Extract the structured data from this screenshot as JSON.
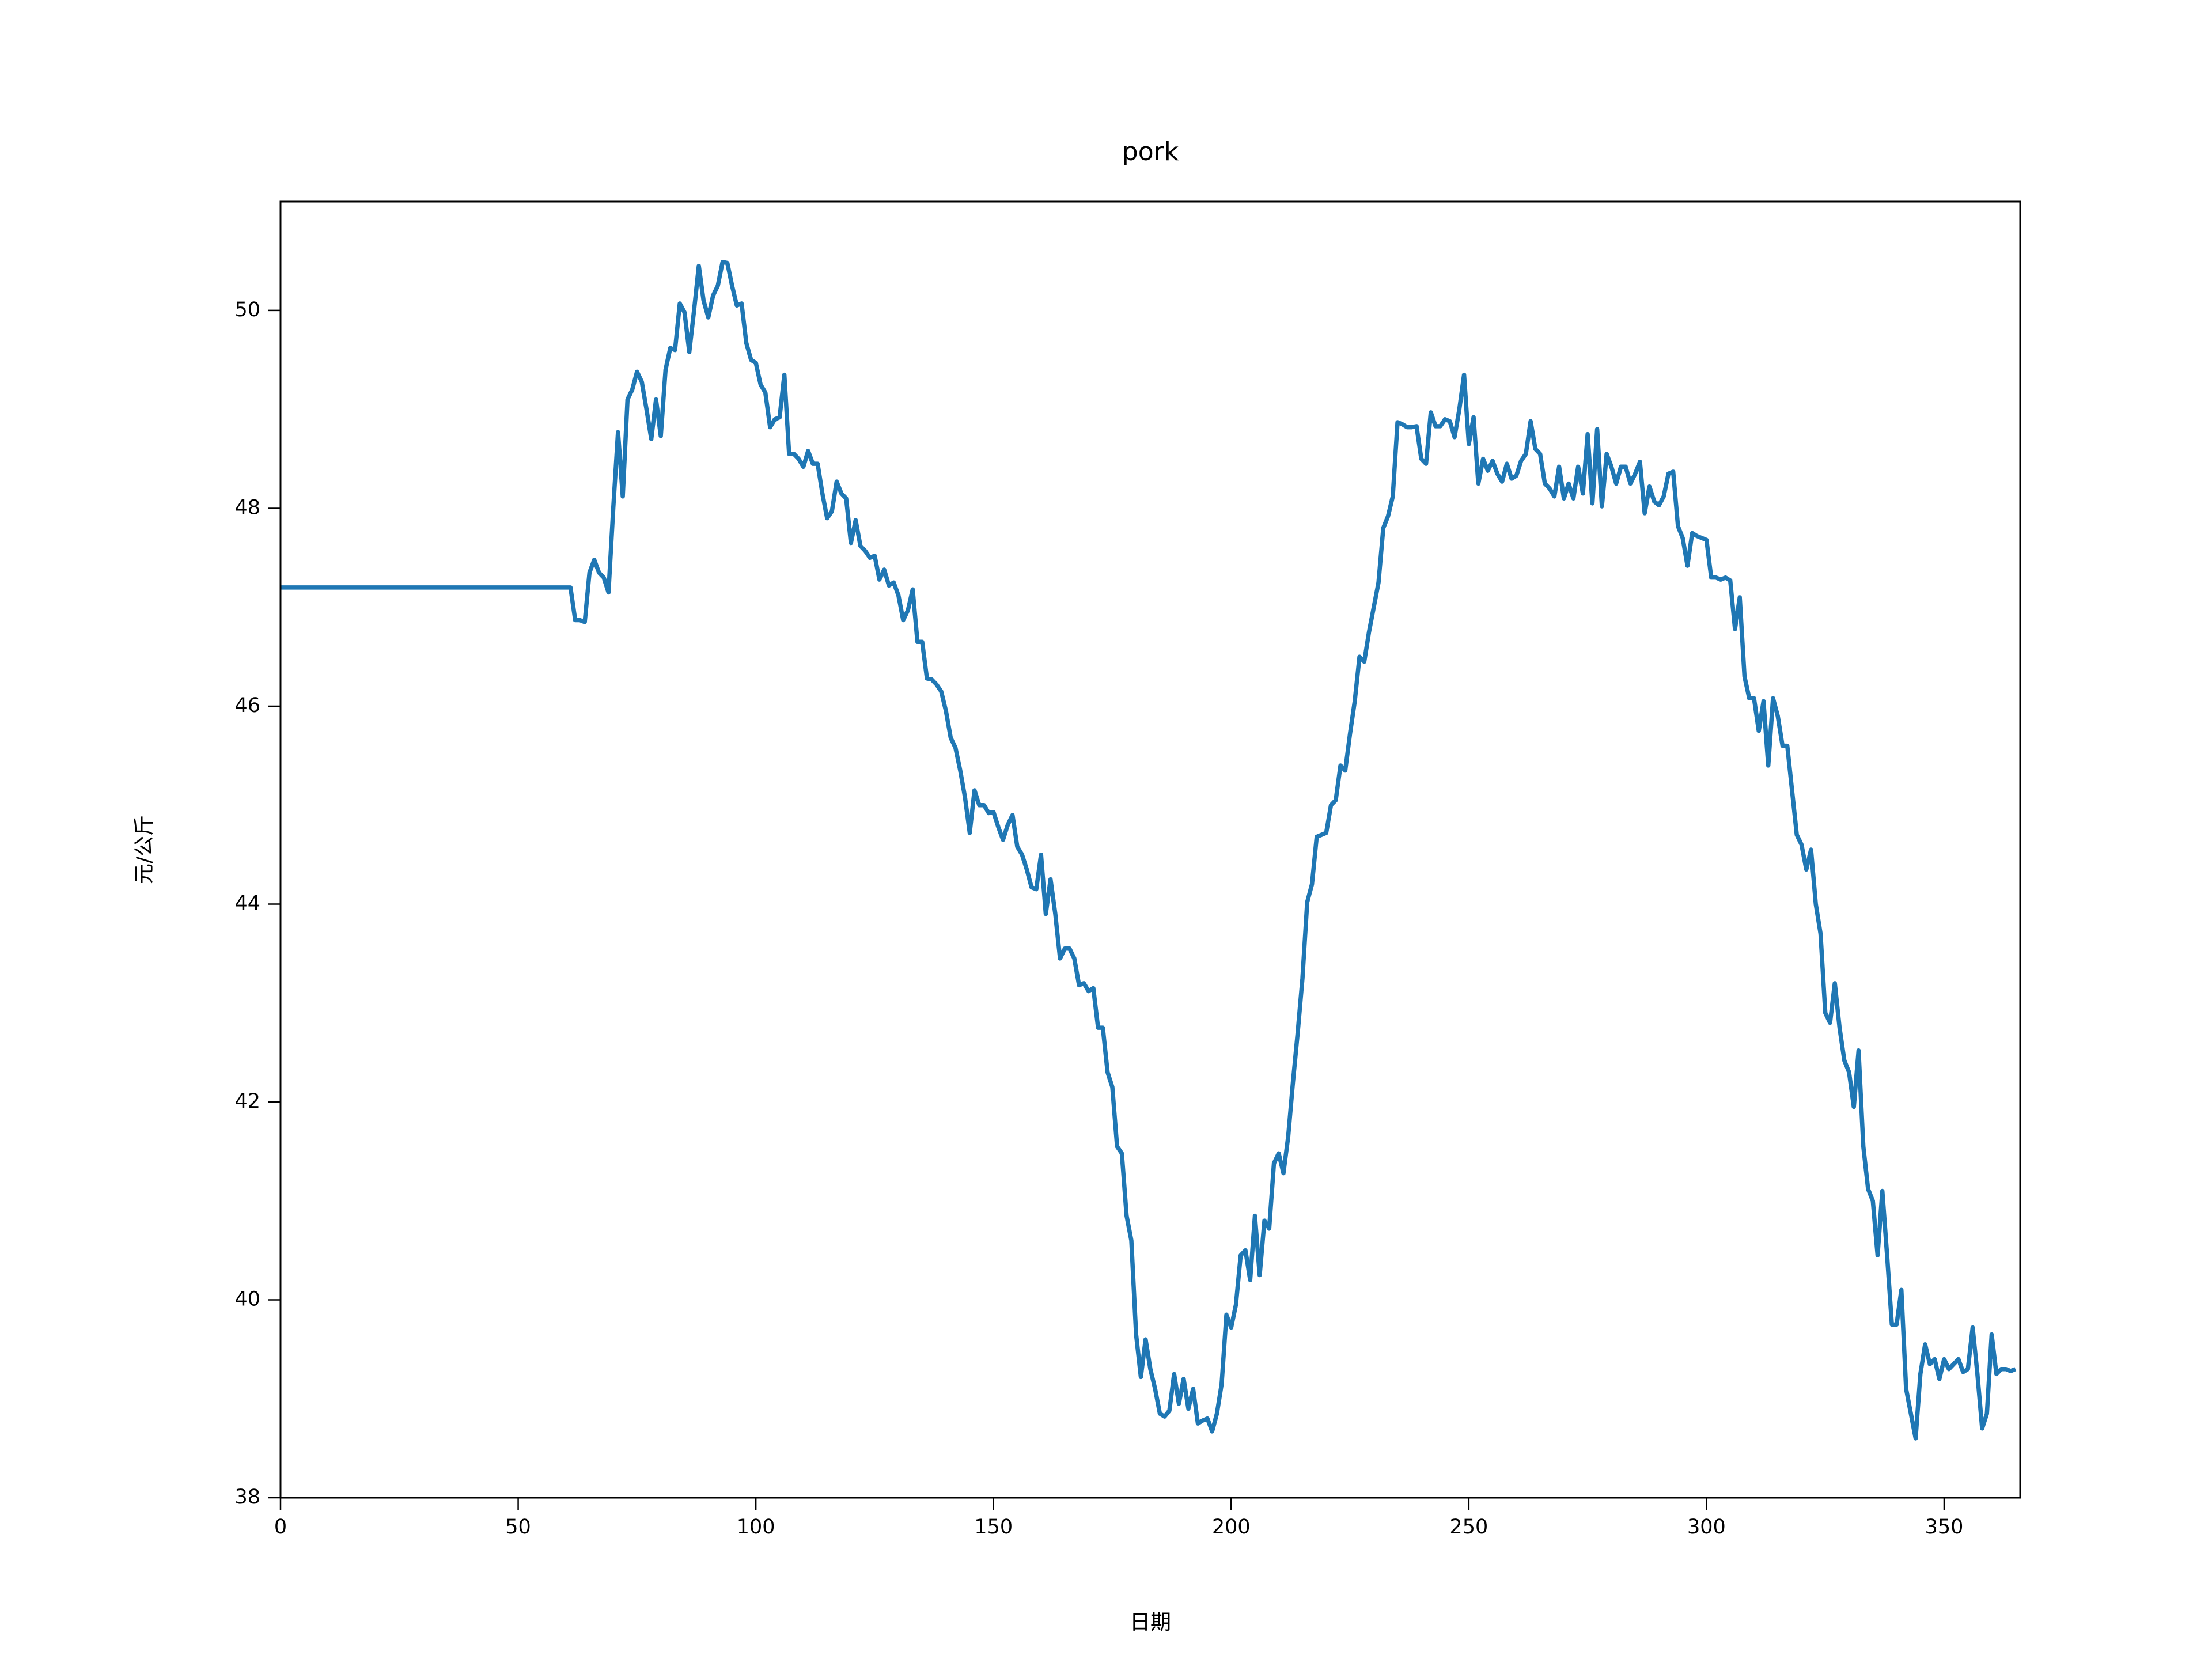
{
  "chart_data": {
    "type": "line",
    "title": "pork",
    "x_label": "日期",
    "y_label": "元/公斤",
    "xlim": [
      0,
      366
    ],
    "xticks": [
      0,
      50,
      100,
      150,
      200,
      250,
      300,
      350
    ],
    "ylim": [
      38,
      51.1
    ],
    "yticks": [
      38,
      40,
      42,
      44,
      46,
      48,
      50
    ],
    "color": "#1f77b4",
    "x": [
      0,
      61,
      62,
      63,
      64,
      65,
      66,
      67,
      68,
      69,
      70,
      71,
      72,
      73,
      74,
      75,
      76,
      77,
      78,
      79,
      80,
      81,
      82,
      83,
      84,
      85,
      86,
      87,
      88,
      89,
      90,
      91,
      92,
      93,
      94,
      95,
      96,
      97,
      98,
      99,
      100,
      101,
      102,
      103,
      104,
      105,
      106,
      107,
      108,
      109,
      110,
      111,
      112,
      113,
      114,
      115,
      116,
      117,
      118,
      119,
      120,
      121,
      122,
      123,
      124,
      125,
      126,
      127,
      128,
      129,
      130,
      131,
      132,
      133,
      134,
      135,
      136,
      137,
      138,
      139,
      140,
      141,
      142,
      143,
      144,
      145,
      146,
      147,
      148,
      149,
      150,
      151,
      152,
      153,
      154,
      155,
      156,
      157,
      158,
      159,
      160,
      161,
      162,
      163,
      164,
      165,
      166,
      167,
      168,
      169,
      170,
      171,
      172,
      173,
      174,
      175,
      176,
      177,
      178,
      179,
      180,
      181,
      182,
      183,
      184,
      185,
      186,
      187,
      188,
      189,
      190,
      191,
      192,
      193,
      194,
      195,
      196,
      197,
      198,
      199,
      200,
      201,
      202,
      203,
      204,
      205,
      206,
      207,
      208,
      209,
      210,
      211,
      212,
      213,
      214,
      215,
      216,
      217,
      218,
      219,
      220,
      221,
      222,
      223,
      224,
      225,
      226,
      227,
      228,
      229,
      230,
      231,
      232,
      233,
      234,
      235,
      236,
      237,
      238,
      239,
      240,
      241,
      242,
      243,
      244,
      245,
      246,
      247,
      248,
      249,
      250,
      251,
      252,
      253,
      254,
      255,
      256,
      257,
      258,
      259,
      260,
      261,
      262,
      263,
      264,
      265,
      266,
      267,
      268,
      269,
      270,
      271,
      272,
      273,
      274,
      275,
      276,
      277,
      278,
      279,
      280,
      281,
      282,
      283,
      284,
      285,
      286,
      287,
      288,
      289,
      290,
      291,
      292,
      293,
      294,
      295,
      296,
      297,
      298,
      299,
      300,
      301,
      302,
      303,
      304,
      305,
      306,
      307,
      308,
      309,
      310,
      311,
      312,
      313,
      314,
      315,
      316,
      317,
      318,
      319,
      320,
      321,
      322,
      323,
      324,
      325,
      326,
      327,
      328,
      329,
      330,
      331,
      332,
      333,
      334,
      335,
      336,
      337,
      338,
      339,
      340,
      341,
      342,
      343,
      344,
      345,
      346,
      347,
      348,
      349,
      350,
      351,
      352,
      353,
      354,
      355,
      356,
      357,
      358,
      359,
      360,
      361,
      362,
      363,
      364,
      365
    ],
    "values": [
      47.2,
      47.2,
      46.87,
      46.87,
      46.85,
      47.35,
      47.48,
      47.35,
      47.3,
      47.15,
      48.0,
      48.77,
      48.12,
      49.1,
      49.2,
      49.38,
      49.28,
      49.0,
      48.7,
      49.1,
      48.73,
      49.4,
      49.62,
      49.6,
      50.07,
      49.98,
      49.58,
      50.0,
      50.45,
      50.1,
      49.93,
      50.15,
      50.25,
      50.49,
      50.48,
      50.25,
      50.05,
      50.07,
      49.67,
      49.5,
      49.47,
      49.25,
      49.17,
      48.82,
      48.9,
      48.92,
      49.35,
      48.55,
      48.55,
      48.5,
      48.42,
      48.58,
      48.45,
      48.45,
      48.15,
      47.9,
      47.97,
      48.27,
      48.15,
      48.1,
      47.65,
      47.88,
      47.62,
      47.57,
      47.5,
      47.52,
      47.28,
      47.38,
      47.22,
      47.25,
      47.12,
      46.87,
      46.97,
      47.18,
      46.65,
      46.65,
      46.28,
      46.27,
      46.22,
      46.15,
      45.95,
      45.68,
      45.58,
      45.35,
      45.08,
      44.72,
      45.15,
      45.0,
      45.0,
      44.92,
      44.93,
      44.78,
      44.65,
      44.8,
      44.9,
      44.58,
      44.5,
      44.35,
      44.17,
      44.15,
      44.5,
      43.9,
      44.25,
      43.9,
      43.45,
      43.55,
      43.55,
      43.45,
      43.18,
      43.2,
      43.12,
      43.15,
      42.75,
      42.75,
      42.3,
      42.15,
      41.55,
      41.48,
      40.85,
      40.6,
      39.65,
      39.22,
      39.6,
      39.3,
      39.1,
      38.85,
      38.82,
      38.88,
      39.25,
      38.95,
      39.2,
      38.9,
      39.1,
      38.75,
      38.78,
      38.8,
      38.67,
      38.85,
      39.15,
      39.85,
      39.72,
      39.95,
      40.45,
      40.5,
      40.2,
      40.85,
      40.25,
      40.8,
      40.72,
      41.38,
      41.48,
      41.28,
      41.65,
      42.2,
      42.7,
      43.25,
      44.02,
      44.2,
      44.68,
      44.7,
      44.72,
      45.0,
      45.05,
      45.4,
      45.35,
      45.72,
      46.05,
      46.5,
      46.45,
      46.75,
      47.0,
      47.25,
      47.8,
      47.92,
      48.12,
      48.87,
      48.85,
      48.82,
      48.82,
      48.83,
      48.5,
      48.45,
      48.97,
      48.83,
      48.83,
      48.9,
      48.88,
      48.72,
      49.0,
      49.35,
      48.65,
      48.92,
      48.25,
      48.5,
      48.38,
      48.48,
      48.35,
      48.27,
      48.45,
      48.3,
      48.33,
      48.48,
      48.55,
      48.88,
      48.6,
      48.55,
      48.25,
      48.2,
      48.12,
      48.42,
      48.1,
      48.25,
      48.1,
      48.42,
      48.15,
      48.75,
      48.05,
      48.8,
      48.02,
      48.55,
      48.42,
      48.25,
      48.42,
      48.42,
      48.25,
      48.35,
      48.47,
      47.95,
      48.22,
      48.07,
      48.03,
      48.12,
      48.35,
      48.37,
      47.82,
      47.7,
      47.42,
      47.75,
      47.72,
      47.7,
      47.68,
      47.3,
      47.3,
      47.28,
      47.3,
      47.27,
      46.78,
      47.1,
      46.3,
      46.08,
      46.08,
      45.75,
      46.05,
      45.4,
      46.08,
      45.9,
      45.6,
      45.6,
      45.15,
      44.7,
      44.6,
      44.35,
      44.55,
      44.0,
      43.7,
      42.9,
      42.8,
      43.2,
      42.75,
      42.42,
      42.3,
      41.95,
      42.52,
      41.55,
      41.12,
      41.0,
      40.45,
      41.1,
      40.45,
      39.75,
      39.75,
      40.1,
      39.1,
      38.85,
      38.6,
      39.25,
      39.55,
      39.35,
      39.4,
      39.2,
      39.4,
      39.3,
      39.35,
      39.4,
      39.27,
      39.3,
      39.72,
      39.25,
      38.7,
      38.85,
      39.65,
      39.25,
      39.3,
      39.3,
      39.28,
      39.3
    ]
  }
}
